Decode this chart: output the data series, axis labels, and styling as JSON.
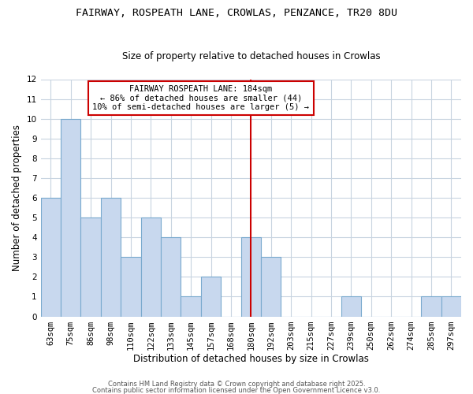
{
  "title": "FAIRWAY, ROSPEATH LANE, CROWLAS, PENZANCE, TR20 8DU",
  "subtitle": "Size of property relative to detached houses in Crowlas",
  "xlabel": "Distribution of detached houses by size in Crowlas",
  "ylabel": "Number of detached properties",
  "bar_labels": [
    "63sqm",
    "75sqm",
    "86sqm",
    "98sqm",
    "110sqm",
    "122sqm",
    "133sqm",
    "145sqm",
    "157sqm",
    "168sqm",
    "180sqm",
    "192sqm",
    "203sqm",
    "215sqm",
    "227sqm",
    "239sqm",
    "250sqm",
    "262sqm",
    "274sqm",
    "285sqm",
    "297sqm"
  ],
  "bar_heights": [
    6,
    10,
    5,
    6,
    3,
    5,
    4,
    1,
    2,
    0,
    4,
    3,
    0,
    0,
    0,
    1,
    0,
    0,
    0,
    1,
    1
  ],
  "bar_color": "#c8d8ee",
  "bar_edge_color": "#7aaace",
  "vline_x_index": 10,
  "vline_color": "#cc0000",
  "ylim": [
    0,
    12
  ],
  "yticks": [
    0,
    1,
    2,
    3,
    4,
    5,
    6,
    7,
    8,
    9,
    10,
    11,
    12
  ],
  "annotation_text": "FAIRWAY ROSPEATH LANE: 184sqm\n← 86% of detached houses are smaller (44)\n10% of semi-detached houses are larger (5) →",
  "annotation_box_color": "#ffffff",
  "annotation_box_edge": "#cc0000",
  "footer1": "Contains HM Land Registry data © Crown copyright and database right 2025.",
  "footer2": "Contains public sector information licensed under the Open Government Licence v3.0.",
  "background_color": "#ffffff",
  "plot_bg_color": "#ffffff",
  "grid_color": "#c8d4e0",
  "title_fontsize": 9.5,
  "subtitle_fontsize": 8.5,
  "axis_label_fontsize": 8.5,
  "tick_fontsize": 7.5,
  "annotation_fontsize": 7.5,
  "footer_fontsize": 6.0
}
